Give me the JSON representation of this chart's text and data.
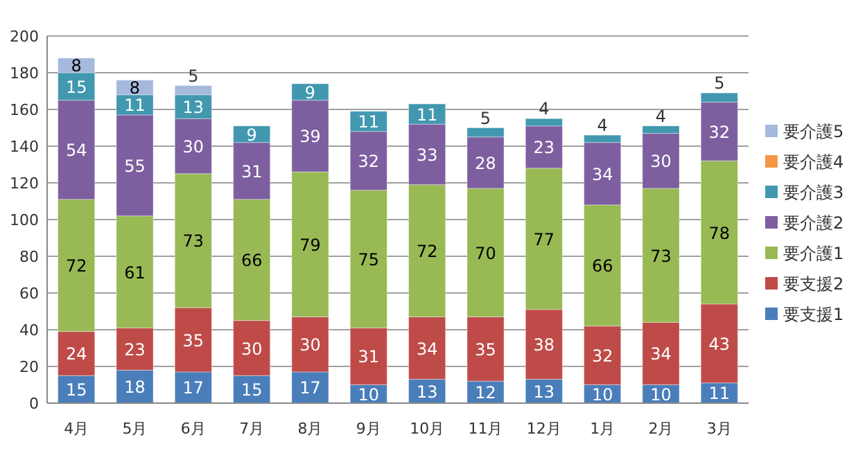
{
  "chart_data": {
    "type": "bar",
    "stacked": true,
    "categories": [
      "4月",
      "5月",
      "6月",
      "7月",
      "8月",
      "9月",
      "10月",
      "11月",
      "12月",
      "1月",
      "2月",
      "3月"
    ],
    "series": [
      {
        "name": "要支援1",
        "color": "#4a7ebb",
        "values": [
          15,
          18,
          17,
          15,
          17,
          10,
          13,
          12,
          13,
          10,
          10,
          11
        ]
      },
      {
        "name": "要支援2",
        "color": "#be4b48",
        "values": [
          24,
          23,
          35,
          30,
          30,
          31,
          34,
          35,
          38,
          32,
          34,
          43
        ]
      },
      {
        "name": "要介護1",
        "color": "#98b954",
        "values": [
          72,
          61,
          73,
          66,
          79,
          75,
          72,
          70,
          77,
          66,
          73,
          78
        ]
      },
      {
        "name": "要介護2",
        "color": "#7d5fa0",
        "values": [
          54,
          55,
          30,
          31,
          39,
          32,
          33,
          28,
          23,
          34,
          30,
          32
        ]
      },
      {
        "name": "要介護3",
        "color": "#4198af",
        "values": [
          15,
          11,
          13,
          9,
          9,
          11,
          11,
          5,
          4,
          4,
          4,
          5
        ]
      },
      {
        "name": "要介護4",
        "color": "#f79646",
        "values": [
          null,
          null,
          null,
          null,
          null,
          null,
          null,
          null,
          null,
          null,
          null,
          null
        ]
      },
      {
        "name": "要介護5",
        "color": "#a5b9dd",
        "values": [
          8,
          8,
          5,
          null,
          null,
          null,
          null,
          null,
          null,
          null,
          null,
          null
        ]
      }
    ],
    "ylim": [
      0,
      200
    ],
    "yticks": [
      0,
      20,
      40,
      60,
      80,
      100,
      120,
      140,
      160,
      180,
      200
    ],
    "grid": "y",
    "legend": "right",
    "data_labels": true
  }
}
